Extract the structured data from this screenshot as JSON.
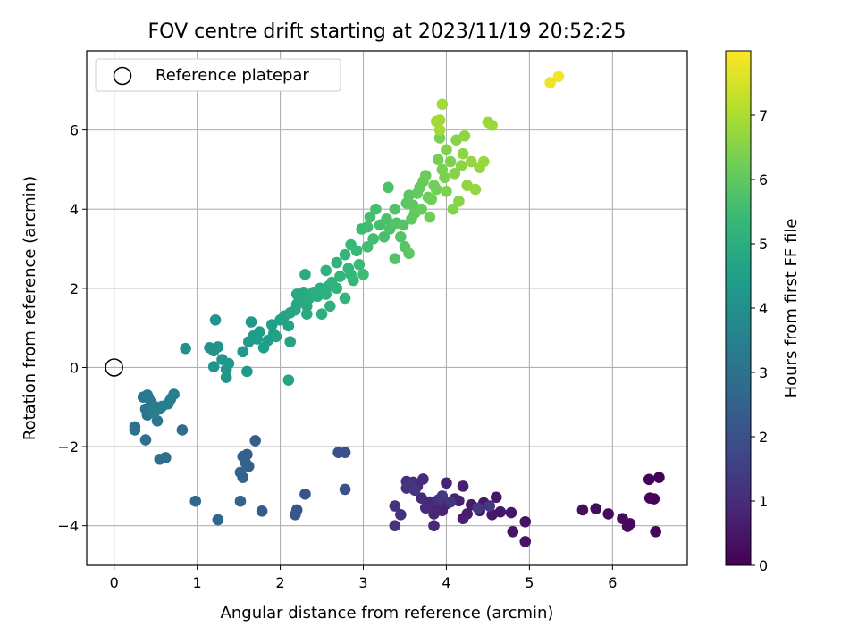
{
  "chart_data": {
    "type": "scatter",
    "title": "FOV centre drift starting at 2023/11/19 20:52:25",
    "xlabel": "Angular distance from reference (arcmin)",
    "ylabel": "Rotation from reference (arcmin)",
    "xlim": [
      -0.33,
      6.9
    ],
    "ylim": [
      -5.0,
      8.0
    ],
    "xticks": [
      0,
      1,
      2,
      3,
      4,
      5,
      6
    ],
    "yticks": [
      -4,
      -2,
      0,
      2,
      4,
      6
    ],
    "ytick_labels": [
      "−4",
      "−2",
      "0",
      "2",
      "4",
      "6"
    ],
    "grid": true,
    "legend": {
      "placement": "upper-left",
      "entries": [
        "Reference platepar"
      ]
    },
    "reference_point": {
      "x": 0,
      "y": 0
    },
    "colorbar": {
      "label": "Hours from first FF file",
      "colormap": "viridis",
      "range": [
        0,
        8
      ],
      "ticks": [
        0,
        1,
        2,
        3,
        4,
        5,
        6,
        7
      ],
      "colors": [
        "#440154",
        "#482878",
        "#3e4989",
        "#31688e",
        "#26828e",
        "#1f9e89",
        "#35b779",
        "#6ece58",
        "#b5de2b",
        "#fde725"
      ]
    },
    "points": [
      [
        6.56,
        -2.78,
        0.05
      ],
      [
        6.44,
        -2.83,
        0.08
      ],
      [
        6.5,
        -3.32,
        0.1
      ],
      [
        6.45,
        -3.3,
        0.12
      ],
      [
        6.52,
        -4.15,
        0.15
      ],
      [
        6.21,
        -3.95,
        0.18
      ],
      [
        6.18,
        -4.02,
        0.2
      ],
      [
        6.12,
        -3.82,
        0.22
      ],
      [
        5.95,
        -3.7,
        0.25
      ],
      [
        5.8,
        -3.57,
        0.28
      ],
      [
        5.64,
        -3.6,
        0.3
      ],
      [
        4.95,
        -3.9,
        0.4
      ],
      [
        4.95,
        -4.4,
        0.42
      ],
      [
        4.8,
        -4.15,
        0.45
      ],
      [
        4.78,
        -3.67,
        0.48
      ],
      [
        4.65,
        -3.65,
        0.5
      ],
      [
        4.6,
        -3.28,
        0.52
      ],
      [
        4.55,
        -3.72,
        0.55
      ],
      [
        4.45,
        -3.42,
        0.58
      ],
      [
        4.4,
        -3.62,
        0.6
      ],
      [
        4.3,
        -3.47,
        0.62
      ],
      [
        4.25,
        -3.7,
        0.65
      ],
      [
        4.2,
        -3.82,
        0.68
      ],
      [
        4.15,
        -3.37,
        0.7
      ],
      [
        4.2,
        -3.0,
        0.72
      ],
      [
        4.1,
        -3.32,
        0.75
      ],
      [
        4.0,
        -2.92,
        0.78
      ],
      [
        4.0,
        -3.45,
        0.8
      ],
      [
        3.95,
        -3.62,
        0.82
      ],
      [
        3.88,
        -3.52,
        0.85
      ],
      [
        3.85,
        -3.7,
        0.88
      ],
      [
        3.85,
        -4.0,
        0.9
      ],
      [
        3.8,
        -3.4,
        0.92
      ],
      [
        3.75,
        -3.55,
        0.95
      ],
      [
        3.7,
        -3.3,
        0.98
      ],
      [
        3.72,
        -2.82,
        1.0
      ],
      [
        3.65,
        -3.0,
        1.02
      ],
      [
        3.6,
        -2.9,
        1.05
      ],
      [
        3.52,
        -2.88,
        1.08
      ],
      [
        3.52,
        -3.05,
        1.1
      ],
      [
        3.45,
        -3.72,
        1.12
      ],
      [
        3.38,
        -3.5,
        1.15
      ],
      [
        3.38,
        -4.0,
        1.18
      ],
      [
        3.55,
        -2.95,
        1.2
      ],
      [
        3.9,
        -3.35,
        1.22
      ],
      [
        4.05,
        -3.4,
        1.25
      ],
      [
        3.95,
        -3.25,
        1.28
      ],
      [
        3.62,
        -3.1,
        1.3
      ],
      [
        4.52,
        -3.5,
        1.32
      ],
      [
        4.38,
        -3.55,
        1.35
      ],
      [
        2.78,
        -2.15,
        2.0
      ],
      [
        2.7,
        -2.15,
        2.02
      ],
      [
        2.78,
        -3.08,
        2.05
      ],
      [
        2.3,
        -3.2,
        2.1
      ],
      [
        2.2,
        -3.6,
        2.15
      ],
      [
        2.18,
        -3.72,
        2.2
      ],
      [
        1.78,
        -3.63,
        2.3
      ],
      [
        1.7,
        -1.85,
        2.35
      ],
      [
        1.62,
        -2.5,
        2.4
      ],
      [
        1.6,
        -2.2,
        2.45
      ],
      [
        1.55,
        -2.25,
        2.5
      ],
      [
        1.58,
        -2.4,
        2.52
      ],
      [
        1.52,
        -2.65,
        2.55
      ],
      [
        1.55,
        -2.78,
        2.58
      ],
      [
        1.52,
        -3.38,
        2.6
      ],
      [
        1.25,
        -3.85,
        2.65
      ],
      [
        0.98,
        -3.38,
        2.7
      ],
      [
        0.82,
        -1.58,
        2.85
      ],
      [
        0.62,
        -2.28,
        2.9
      ],
      [
        0.55,
        -2.32,
        2.92
      ],
      [
        0.38,
        -1.83,
        2.95
      ],
      [
        0.25,
        -1.5,
        2.98
      ],
      [
        0.25,
        -1.58,
        3.0
      ],
      [
        0.4,
        -1.2,
        3.05
      ],
      [
        0.52,
        -1.35,
        3.1
      ],
      [
        0.38,
        -1.05,
        3.15
      ],
      [
        0.42,
        -0.78,
        3.2
      ],
      [
        0.35,
        -0.75,
        3.22
      ],
      [
        0.4,
        -0.7,
        3.25
      ],
      [
        0.45,
        -0.9,
        3.28
      ],
      [
        0.5,
        -1.0,
        3.3
      ],
      [
        0.55,
        -1.05,
        3.32
      ],
      [
        0.65,
        -0.92,
        3.35
      ],
      [
        0.68,
        -0.8,
        3.38
      ],
      [
        0.72,
        -0.68,
        3.4
      ],
      [
        0.48,
        -1.15,
        3.42
      ],
      [
        0.58,
        -0.98,
        3.45
      ],
      [
        0.86,
        0.48,
        4.0
      ],
      [
        1.15,
        0.5,
        4.05
      ],
      [
        1.2,
        0.42,
        4.08
      ],
      [
        1.25,
        0.52,
        4.1
      ],
      [
        1.22,
        1.2,
        4.12
      ],
      [
        1.2,
        0.02,
        4.15
      ],
      [
        1.3,
        0.2,
        4.18
      ],
      [
        1.35,
        -0.05,
        4.2
      ],
      [
        1.35,
        -0.25,
        4.22
      ],
      [
        1.38,
        0.1,
        4.25
      ],
      [
        1.6,
        -0.1,
        4.28
      ],
      [
        1.55,
        0.4,
        4.3
      ],
      [
        1.62,
        0.65,
        4.32
      ],
      [
        1.65,
        1.15,
        4.35
      ],
      [
        1.68,
        0.8,
        4.38
      ],
      [
        1.72,
        0.72,
        4.4
      ],
      [
        1.75,
        0.9,
        4.42
      ],
      [
        1.8,
        0.5,
        4.45
      ],
      [
        1.85,
        0.68,
        4.48
      ],
      [
        1.9,
        1.08,
        4.5
      ],
      [
        1.92,
        0.85,
        4.52
      ],
      [
        1.95,
        0.78,
        4.55
      ],
      [
        2.0,
        1.2,
        4.58
      ],
      [
        2.05,
        1.3,
        4.6
      ],
      [
        2.1,
        1.05,
        4.62
      ],
      [
        2.12,
        0.65,
        4.65
      ],
      [
        2.1,
        -0.32,
        4.68
      ],
      [
        2.12,
        1.38,
        4.7
      ],
      [
        2.18,
        1.45,
        4.72
      ],
      [
        2.2,
        1.6,
        4.75
      ],
      [
        2.25,
        1.72,
        4.78
      ],
      [
        2.2,
        1.85,
        4.8
      ],
      [
        2.28,
        1.9,
        4.82
      ],
      [
        2.32,
        1.55,
        4.85
      ],
      [
        2.32,
        1.35,
        4.88
      ],
      [
        2.35,
        1.75,
        4.9
      ],
      [
        2.3,
        2.35,
        4.92
      ],
      [
        2.4,
        1.9,
        4.95
      ],
      [
        2.45,
        1.8,
        4.98
      ],
      [
        2.48,
        2.0,
        5.0
      ],
      [
        2.5,
        1.35,
        5.02
      ],
      [
        2.55,
        1.85,
        5.05
      ],
      [
        2.58,
        2.05,
        5.08
      ],
      [
        2.6,
        1.55,
        5.1
      ],
      [
        2.55,
        2.45,
        5.12
      ],
      [
        2.62,
        2.15,
        5.15
      ],
      [
        2.68,
        2.0,
        5.18
      ],
      [
        2.68,
        2.65,
        5.2
      ],
      [
        2.72,
        2.3,
        5.22
      ],
      [
        2.78,
        1.75,
        5.25
      ],
      [
        2.78,
        2.85,
        5.28
      ],
      [
        2.82,
        2.5,
        5.3
      ],
      [
        2.85,
        2.35,
        5.32
      ],
      [
        2.88,
        2.2,
        5.35
      ],
      [
        2.85,
        3.1,
        5.38
      ],
      [
        2.92,
        2.95,
        5.4
      ],
      [
        2.95,
        2.6,
        5.42
      ],
      [
        2.98,
        3.5,
        5.45
      ],
      [
        3.0,
        2.35,
        5.48
      ],
      [
        3.05,
        3.55,
        5.5
      ],
      [
        3.05,
        3.05,
        5.52
      ],
      [
        3.08,
        3.8,
        5.55
      ],
      [
        3.12,
        3.25,
        5.58
      ],
      [
        3.15,
        4.0,
        5.6
      ],
      [
        3.2,
        3.6,
        5.62
      ],
      [
        3.25,
        3.3,
        5.65
      ],
      [
        3.28,
        3.75,
        5.68
      ],
      [
        3.3,
        4.55,
        5.7
      ],
      [
        3.32,
        3.5,
        5.72
      ],
      [
        3.38,
        4.0,
        5.75
      ],
      [
        3.38,
        2.75,
        5.78
      ],
      [
        3.4,
        3.65,
        5.8
      ],
      [
        3.45,
        3.3,
        5.82
      ],
      [
        3.48,
        3.6,
        5.85
      ],
      [
        3.5,
        3.05,
        5.88
      ],
      [
        3.52,
        4.15,
        5.9
      ],
      [
        3.55,
        4.35,
        5.92
      ],
      [
        3.55,
        2.88,
        5.95
      ],
      [
        3.58,
        3.75,
        5.98
      ],
      [
        3.6,
        4.1,
        6.0
      ],
      [
        3.62,
        3.9,
        6.02
      ],
      [
        3.65,
        4.4,
        6.05
      ],
      [
        3.68,
        4.55,
        6.08
      ],
      [
        3.7,
        4.0,
        6.1
      ],
      [
        3.72,
        4.7,
        6.12
      ],
      [
        3.75,
        4.85,
        6.15
      ],
      [
        3.78,
        4.3,
        6.18
      ],
      [
        3.8,
        3.8,
        6.2
      ],
      [
        3.82,
        4.25,
        6.22
      ],
      [
        3.85,
        4.6,
        6.25
      ],
      [
        3.88,
        4.5,
        6.28
      ],
      [
        3.9,
        5.25,
        6.3
      ],
      [
        3.92,
        5.8,
        6.32
      ],
      [
        3.95,
        5.0,
        6.35
      ],
      [
        3.98,
        4.8,
        6.38
      ],
      [
        4.0,
        4.45,
        6.4
      ],
      [
        4.0,
        5.5,
        6.42
      ],
      [
        4.05,
        5.2,
        6.45
      ],
      [
        4.08,
        4.0,
        6.48
      ],
      [
        4.1,
        4.9,
        6.5
      ],
      [
        4.12,
        5.75,
        6.52
      ],
      [
        4.15,
        4.2,
        6.55
      ],
      [
        4.18,
        5.1,
        6.58
      ],
      [
        4.2,
        5.4,
        6.6
      ],
      [
        4.22,
        5.85,
        6.62
      ],
      [
        4.25,
        4.6,
        6.65
      ],
      [
        4.3,
        5.2,
        6.68
      ],
      [
        4.35,
        4.5,
        6.7
      ],
      [
        4.4,
        5.05,
        6.72
      ],
      [
        4.45,
        5.2,
        6.75
      ],
      [
        4.5,
        6.2,
        6.78
      ],
      [
        4.55,
        6.12,
        6.8
      ],
      [
        3.88,
        6.22,
        6.82
      ],
      [
        3.92,
        6.25,
        6.85
      ],
      [
        3.95,
        6.65,
        6.88
      ],
      [
        3.92,
        6.0,
        6.9
      ],
      [
        5.25,
        7.2,
        7.8
      ],
      [
        5.35,
        7.35,
        7.85
      ]
    ]
  }
}
